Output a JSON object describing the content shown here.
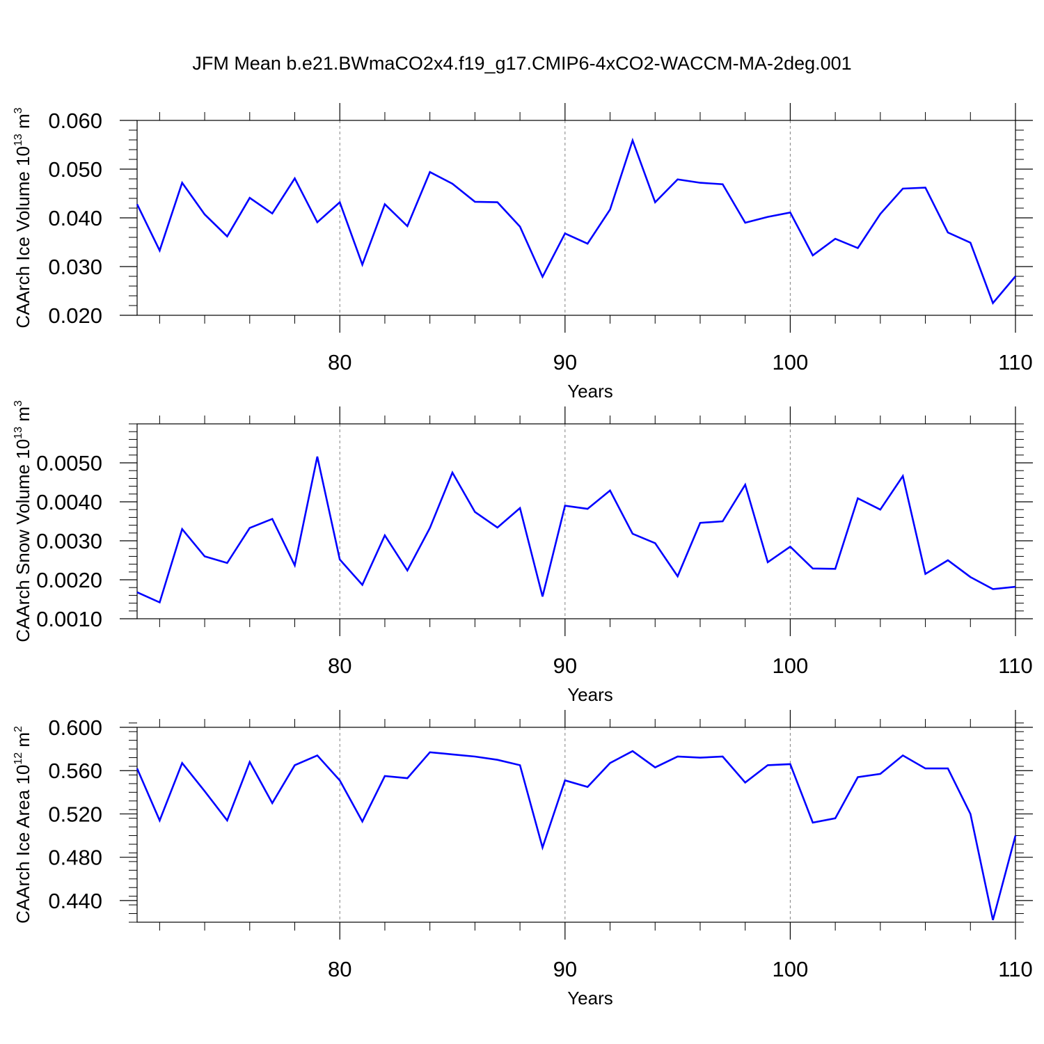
{
  "figure": {
    "title": "JFM Mean b.e21.BWmaCO2x4.f19_g17.CMIP6-4xCO2-WACCM-MA-2deg.001",
    "line_color": "#0000ff",
    "axis_color": "#000000",
    "grid_color": "#7f7f7f"
  },
  "chart_data": [
    {
      "type": "line",
      "title": "JFM Mean b.e21.BWmaCO2x4.f19_g17.CMIP6-4xCO2-WACCM-MA-2deg.001",
      "xlabel": "Years",
      "ylabel_text": "CAArch Ice Volume 10",
      "ylabel_exp": "13",
      "ylabel_unit": " m",
      "ylabel_unit_exp": "3",
      "xlim": [
        71,
        110
      ],
      "ylim": [
        0.02,
        0.06
      ],
      "xticks": [
        80,
        90,
        100,
        110
      ],
      "yticks": [
        0.02,
        0.03,
        0.04,
        0.05,
        0.06
      ],
      "ytick_labels": [
        "0.020",
        "0.030",
        "0.040",
        "0.050",
        "0.060"
      ],
      "yminor_step": 0.002,
      "grid": "vertical dashed at major x ticks",
      "x": [
        71,
        72,
        73,
        74,
        75,
        76,
        77,
        78,
        79,
        80,
        81,
        82,
        83,
        84,
        85,
        86,
        87,
        88,
        89,
        90,
        91,
        92,
        93,
        94,
        95,
        96,
        97,
        98,
        99,
        100,
        101,
        102,
        103,
        104,
        105,
        106,
        107,
        108,
        109,
        110
      ],
      "series": [
        {
          "name": "CAArch Ice Volume",
          "values": [
            0.0428,
            0.0333,
            0.0472,
            0.0407,
            0.0362,
            0.0441,
            0.0409,
            0.0481,
            0.0391,
            0.0432,
            0.0304,
            0.0428,
            0.0383,
            0.0494,
            0.047,
            0.0433,
            0.0432,
            0.0382,
            0.0279,
            0.0368,
            0.0347,
            0.0417,
            0.0559,
            0.0432,
            0.0479,
            0.0472,
            0.0469,
            0.039,
            0.0402,
            0.0411,
            0.0323,
            0.0357,
            0.0338,
            0.0408,
            0.046,
            0.0462,
            0.037,
            0.0349,
            0.0225,
            0.028
          ]
        }
      ]
    },
    {
      "type": "line",
      "xlabel": "Years",
      "ylabel_text": "CAArch Snow Volume 10",
      "ylabel_exp": "13",
      "ylabel_unit": " m",
      "ylabel_unit_exp": "3",
      "xlim": [
        71,
        110
      ],
      "ylim": [
        0.001,
        0.006
      ],
      "xticks": [
        80,
        90,
        100,
        110
      ],
      "yticks": [
        0.001,
        0.002,
        0.003,
        0.004,
        0.005
      ],
      "ytick_labels": [
        "0.0010",
        "0.0020",
        "0.0030",
        "0.0040",
        "0.0050"
      ],
      "yminor_step": 0.0002,
      "grid": "vertical dashed at major x ticks",
      "x": [
        71,
        72,
        73,
        74,
        75,
        76,
        77,
        78,
        79,
        80,
        81,
        82,
        83,
        84,
        85,
        86,
        87,
        88,
        89,
        90,
        91,
        92,
        93,
        94,
        95,
        96,
        97,
        98,
        99,
        100,
        101,
        102,
        103,
        104,
        105,
        106,
        107,
        108,
        109,
        110
      ],
      "series": [
        {
          "name": "CAArch Snow Volume",
          "values": [
            0.00168,
            0.00142,
            0.0033,
            0.0026,
            0.00243,
            0.00333,
            0.00356,
            0.00237,
            0.00516,
            0.00252,
            0.00187,
            0.00314,
            0.00224,
            0.00333,
            0.00475,
            0.00374,
            0.00334,
            0.00384,
            0.00157,
            0.0039,
            0.00382,
            0.00429,
            0.00318,
            0.00294,
            0.00209,
            0.00346,
            0.0035,
            0.00444,
            0.00245,
            0.00285,
            0.00229,
            0.00228,
            0.00409,
            0.0038,
            0.00466,
            0.00215,
            0.0025,
            0.00207,
            0.00176,
            0.00182
          ]
        }
      ]
    },
    {
      "type": "line",
      "xlabel": "Years",
      "ylabel_text": "CAArch Ice Area 10",
      "ylabel_exp": "12",
      "ylabel_unit": " m",
      "ylabel_unit_exp": "2",
      "xlim": [
        71,
        110
      ],
      "ylim": [
        0.42,
        0.6
      ],
      "xticks": [
        80,
        90,
        100,
        110
      ],
      "yticks": [
        0.44,
        0.48,
        0.52,
        0.56,
        0.6
      ],
      "ytick_labels": [
        "0.440",
        "0.480",
        "0.520",
        "0.560",
        "0.600"
      ],
      "yminor_step": 0.008,
      "grid": "vertical dashed at major x ticks",
      "x": [
        71,
        72,
        73,
        74,
        75,
        76,
        77,
        78,
        79,
        80,
        81,
        82,
        83,
        84,
        85,
        86,
        87,
        88,
        89,
        90,
        91,
        92,
        93,
        94,
        95,
        96,
        97,
        98,
        99,
        100,
        101,
        102,
        103,
        104,
        105,
        106,
        107,
        108,
        109,
        110
      ],
      "series": [
        {
          "name": "CAArch Ice Area",
          "values": [
            0.562,
            0.514,
            0.567,
            0.541,
            0.514,
            0.568,
            0.53,
            0.565,
            0.574,
            0.551,
            0.513,
            0.555,
            0.553,
            0.577,
            0.575,
            0.573,
            0.57,
            0.565,
            0.489,
            0.551,
            0.545,
            0.567,
            0.578,
            0.563,
            0.573,
            0.572,
            0.573,
            0.549,
            0.565,
            0.566,
            0.512,
            0.516,
            0.554,
            0.557,
            0.574,
            0.562,
            0.562,
            0.52,
            0.422,
            0.5
          ]
        }
      ]
    }
  ]
}
